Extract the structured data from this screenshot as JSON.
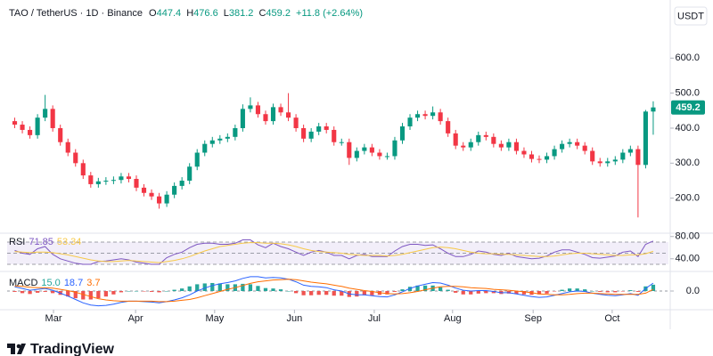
{
  "header": {
    "symbol": "TAO / TetherUS · 1D · Binance",
    "ohlc_labels": [
      "O",
      "H",
      "L",
      "C"
    ],
    "change": "+11.8 (+2.64%)"
  },
  "footer": {
    "brand": "TradingView"
  },
  "chart_data": [
    {
      "type": "candlestick",
      "currency": "USDT",
      "up_color": "#089981",
      "down_color": "#f23645",
      "open": [
        420,
        410,
        395,
        380,
        430,
        455,
        400,
        360,
        330,
        300,
        265,
        240,
        248,
        250,
        252,
        262,
        255,
        230,
        215,
        205,
        185,
        210,
        235,
        250,
        290,
        330,
        355,
        365,
        370,
        375,
        400,
        455,
        465,
        440,
        420,
        460,
        445,
        430,
        400,
        370,
        390,
        405,
        395,
        360,
        360,
        315,
        335,
        345,
        330,
        320,
        320,
        365,
        405,
        430,
        440,
        435,
        445,
        420,
        385,
        350,
        345,
        360,
        380,
        375,
        355,
        345,
        360,
        335,
        325,
        312,
        310,
        320,
        340,
        355,
        360,
        350,
        335,
        305,
        300,
        305,
        310,
        330,
        340,
        295,
        447.4
      ],
      "high": [
        430,
        420,
        405,
        440,
        495,
        465,
        410,
        370,
        340,
        310,
        275,
        258,
        260,
        262,
        272,
        272,
        265,
        240,
        225,
        215,
        220,
        245,
        260,
        300,
        340,
        365,
        375,
        380,
        385,
        410,
        468,
        488,
        475,
        450,
        470,
        470,
        500,
        440,
        410,
        400,
        415,
        415,
        405,
        370,
        370,
        345,
        355,
        355,
        340,
        330,
        375,
        415,
        440,
        450,
        450,
        462,
        455,
        430,
        395,
        360,
        370,
        390,
        390,
        385,
        365,
        370,
        370,
        345,
        335,
        322,
        330,
        350,
        365,
        370,
        370,
        360,
        345,
        315,
        315,
        320,
        340,
        350,
        350,
        452,
        476.6
      ],
      "low": [
        400,
        385,
        370,
        370,
        420,
        390,
        350,
        320,
        290,
        255,
        230,
        230,
        238,
        240,
        242,
        245,
        220,
        205,
        195,
        170,
        175,
        200,
        225,
        240,
        280,
        320,
        345,
        355,
        360,
        365,
        390,
        445,
        430,
        410,
        410,
        435,
        420,
        390,
        360,
        360,
        380,
        385,
        350,
        350,
        295,
        305,
        325,
        320,
        310,
        310,
        310,
        355,
        395,
        420,
        425,
        425,
        410,
        375,
        340,
        335,
        335,
        350,
        365,
        345,
        335,
        335,
        325,
        315,
        302,
        300,
        300,
        310,
        330,
        345,
        340,
        325,
        295,
        290,
        290,
        295,
        300,
        320,
        145,
        285,
        381.2
      ],
      "close": [
        410,
        395,
        380,
        430,
        455,
        400,
        360,
        330,
        300,
        265,
        240,
        248,
        250,
        252,
        262,
        255,
        230,
        215,
        205,
        185,
        210,
        235,
        250,
        290,
        330,
        355,
        365,
        370,
        375,
        400,
        455,
        465,
        440,
        420,
        460,
        445,
        430,
        400,
        370,
        390,
        405,
        395,
        360,
        360,
        315,
        335,
        345,
        330,
        320,
        320,
        365,
        405,
        430,
        440,
        435,
        445,
        420,
        385,
        350,
        345,
        360,
        380,
        375,
        355,
        345,
        360,
        335,
        325,
        312,
        310,
        320,
        340,
        355,
        360,
        350,
        335,
        305,
        300,
        305,
        310,
        330,
        340,
        295,
        447.4,
        459.2
      ],
      "xlim": [
        -1,
        86
      ],
      "xticks": [
        {
          "value": 5.1,
          "label": "Mar"
        },
        {
          "value": 15.9,
          "label": "Apr"
        },
        {
          "value": 26.3,
          "label": "May"
        },
        {
          "value": 36.8,
          "label": "Jun"
        },
        {
          "value": 47.3,
          "label": "Jul"
        },
        {
          "value": 57.6,
          "label": "Aug"
        },
        {
          "value": 68.2,
          "label": "Sep"
        },
        {
          "value": 78.6,
          "label": "Oct"
        }
      ],
      "ylim": [
        100,
        766
      ],
      "yticks": [
        {
          "value": 200,
          "label": "200.0"
        },
        {
          "value": 300,
          "label": "300.0"
        },
        {
          "value": 400,
          "label": "400.0"
        },
        {
          "value": 500,
          "label": "500.0"
        },
        {
          "value": 600,
          "label": "600.0"
        }
      ]
    },
    {
      "type": "rsi",
      "title": "RSI",
      "ylim": [
        22,
        86
      ],
      "yticks": [
        {
          "value": 40,
          "label": "40.00"
        },
        {
          "value": 80,
          "label": "80.00"
        }
      ],
      "bands": [
        30,
        50,
        70
      ],
      "band_color": "#7e57c2",
      "series": [
        {
          "color": "#7e57c2",
          "values": [
            55,
            50,
            48,
            58,
            62,
            48,
            40,
            36,
            32,
            30,
            30,
            35,
            36,
            38,
            40,
            38,
            34,
            32,
            30,
            30,
            42,
            48,
            52,
            60,
            66,
            68,
            68,
            66,
            66,
            68,
            74,
            74,
            65,
            60,
            68,
            62,
            58,
            52,
            46,
            52,
            55,
            52,
            46,
            46,
            40,
            46,
            48,
            44,
            44,
            44,
            54,
            62,
            66,
            66,
            64,
            65,
            58,
            50,
            44,
            44,
            48,
            54,
            52,
            48,
            46,
            50,
            44,
            42,
            40,
            41,
            45,
            52,
            56,
            56,
            52,
            48,
            42,
            41,
            43,
            45,
            52,
            54,
            44,
            66,
            71.85
          ]
        },
        {
          "color": "#f7c948",
          "values": [
            53,
            52,
            51,
            52,
            52,
            51,
            49,
            47,
            44,
            41,
            38,
            36,
            35,
            35,
            36,
            37,
            36,
            35,
            34,
            33,
            35,
            37,
            40,
            44,
            49,
            54,
            58,
            62,
            64,
            66,
            68,
            69,
            69,
            68,
            68,
            67,
            65,
            62,
            58,
            55,
            53,
            52,
            51,
            50,
            48,
            47,
            46,
            46,
            46,
            45,
            46,
            48,
            51,
            54,
            57,
            60,
            61,
            60,
            58,
            55,
            52,
            50,
            49,
            49,
            48,
            48,
            47,
            46,
            45,
            44,
            44,
            45,
            47,
            49,
            50,
            50,
            49,
            48,
            47,
            46,
            46,
            47,
            47,
            49,
            53.34
          ]
        }
      ]
    },
    {
      "type": "macd",
      "title": "MACD",
      "ylim": [
        -40,
        40
      ],
      "yticks": [
        {
          "value": 0,
          "label": "0.0"
        }
      ],
      "series": [
        {
          "kind": "histogram",
          "legend_label": "15.0",
          "color": "#26a69a",
          "negative_color": "#ef5350",
          "values": [
            -2,
            -5,
            -7,
            -4,
            -2,
            -5,
            -9,
            -13,
            -17,
            -20,
            -20,
            -17,
            -13,
            -8,
            -3,
            0,
            0,
            -1,
            -2,
            -3,
            0,
            3,
            6,
            11,
            16,
            18,
            19,
            18,
            16,
            16,
            17,
            16,
            12,
            7,
            6,
            4,
            0,
            -5,
            -10,
            -10,
            -9,
            -9,
            -11,
            -11,
            -14,
            -13,
            -10,
            -10,
            -9,
            -8,
            -2,
            4,
            10,
            13,
            13,
            13,
            9,
            3,
            -4,
            -8,
            -8,
            -6,
            -5,
            -5,
            -7,
            -6,
            -7,
            -8,
            -9,
            -8,
            -6,
            -1,
            3,
            6,
            6,
            4,
            0,
            -2,
            -3,
            -3,
            -1,
            2,
            -2,
            11,
            15
          ]
        },
        {
          "kind": "line",
          "legend_label": "18.7",
          "color": "#2962ff",
          "values": [
            10,
            6,
            2,
            4,
            6,
            2,
            -5,
            -12,
            -20,
            -28,
            -33,
            -35,
            -34,
            -31,
            -27,
            -24,
            -24,
            -25,
            -26,
            -28,
            -25,
            -21,
            -16,
            -9,
            0,
            7,
            13,
            17,
            20,
            24,
            30,
            34,
            34,
            31,
            32,
            31,
            28,
            22,
            14,
            11,
            10,
            8,
            3,
            0,
            -7,
            -9,
            -9,
            -11,
            -13,
            -14,
            -9,
            -2,
            6,
            12,
            16,
            20,
            19,
            14,
            7,
            2,
            0,
            1,
            1,
            -1,
            -4,
            -4,
            -7,
            -10,
            -13,
            -15,
            -14,
            -10,
            -6,
            -2,
            0,
            -1,
            -5,
            -8,
            -10,
            -11,
            -9,
            -6,
            -10,
            6,
            18.7
          ]
        },
        {
          "kind": "line",
          "legend_label": "3.7",
          "color": "#ff6d00",
          "values": [
            12,
            11,
            9,
            8,
            8,
            7,
            4,
            1,
            -3,
            -8,
            -13,
            -18,
            -21,
            -23,
            -24,
            -24,
            -24,
            -24,
            -24,
            -25,
            -25,
            -24,
            -22,
            -20,
            -16,
            -11,
            -6,
            -1,
            4,
            8,
            13,
            18,
            22,
            24,
            26,
            27,
            28,
            27,
            24,
            21,
            19,
            17,
            14,
            11,
            7,
            4,
            1,
            -1,
            -4,
            -6,
            -7,
            -6,
            -4,
            -1,
            3,
            7,
            10,
            11,
            11,
            10,
            8,
            7,
            6,
            4,
            3,
            2,
            0,
            -2,
            -4,
            -7,
            -8,
            -9,
            -9,
            -8,
            -6,
            -5,
            -5,
            -6,
            -7,
            -8,
            -8,
            -8,
            -8,
            -5,
            3.7
          ]
        }
      ]
    }
  ]
}
